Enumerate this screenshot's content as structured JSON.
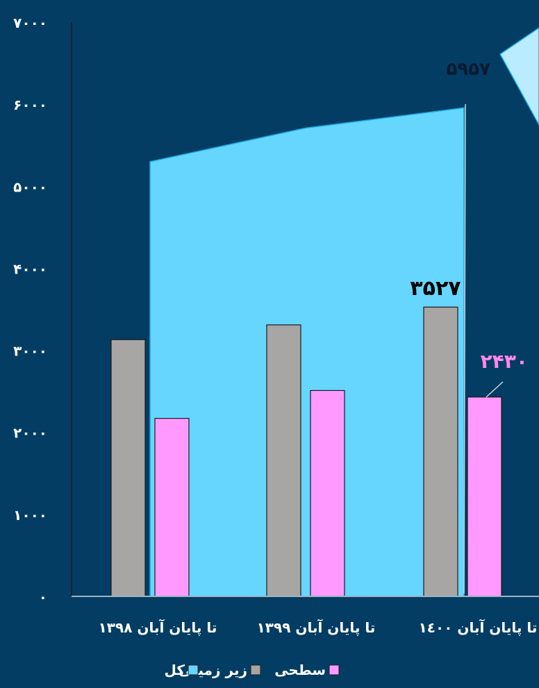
{
  "chart_data": {
    "type": "bar",
    "y_ticks": [
      "۰",
      "۱۰۰۰",
      "۲۰۰۰",
      "۳۰۰۰",
      "۴۰۰۰",
      "۵۰۰۰",
      "۶۰۰۰",
      "۷۰۰۰"
    ],
    "ylim": [
      0,
      7000
    ],
    "categories": [
      "تا پایان آبان ۱۳۹۸",
      "تا پایان آبان ۱۳۹۹",
      "تا پایان آبان ۱٤۰۰"
    ],
    "series": [
      {
        "name": "کل",
        "kind": "area",
        "color": "#66d6ff",
        "values": [
          5300,
          5710,
          5957
        ]
      },
      {
        "name": "زیر زمینی",
        "kind": "bar",
        "color": "#a8a5a5",
        "values": [
          3130,
          3310,
          3527
        ]
      },
      {
        "name": "سطحی",
        "kind": "bar",
        "color": "#ff99ff",
        "values": [
          2170,
          2510,
          2430
        ]
      }
    ],
    "data_labels": [
      {
        "series": 0,
        "index": 2,
        "text": "۵۹۵۷",
        "color": "#0a1a33"
      },
      {
        "series": 1,
        "index": 2,
        "text": "۳۵۲۷",
        "color": "#000000"
      },
      {
        "series": 2,
        "index": 2,
        "text": "۲۴۳۰",
        "color": "#ff88ee"
      }
    ],
    "legend_order": [
      2,
      1,
      0
    ],
    "grid": false,
    "legend_position": "bottom"
  }
}
